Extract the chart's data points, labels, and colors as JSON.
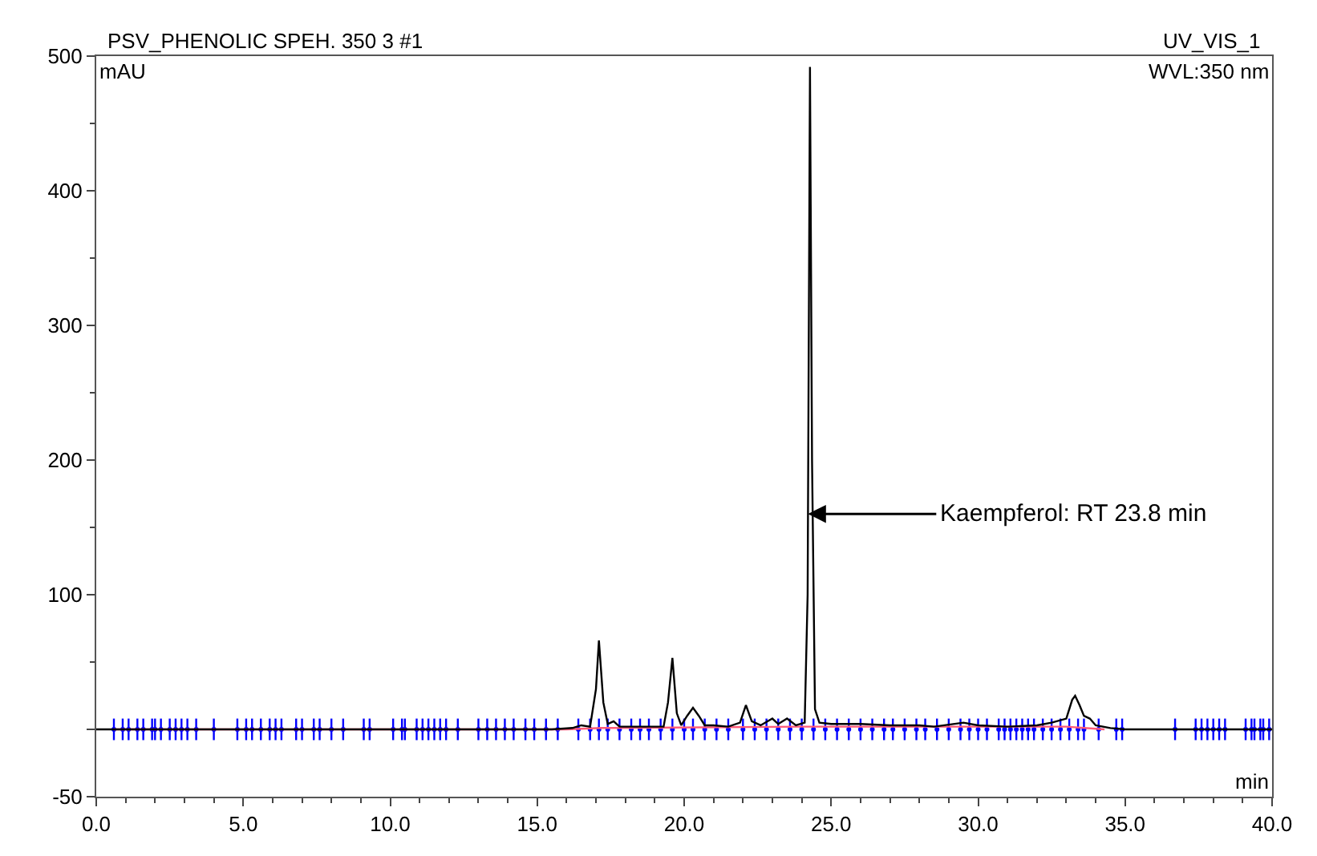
{
  "chart_data": {
    "type": "line",
    "title": "PSV_PHENOLIC SPEH. 350 3 #1",
    "subtitle": "UV_VIS_1",
    "xlabel": "min",
    "ylabel": "mAU",
    "annotations": [
      "WVL:350 nm",
      {
        "text": "Kaempferol: RT 23.8 min",
        "x": 24.21,
        "y": 160
      }
    ],
    "xlim": [
      0,
      40
    ],
    "ylim": [
      -50,
      500
    ],
    "xticks": [
      {
        "value": 0,
        "label": "0.0"
      },
      {
        "value": 5,
        "label": "5.0"
      },
      {
        "value": 10,
        "label": "10.0"
      },
      {
        "value": 15,
        "label": "15.0"
      },
      {
        "value": 20,
        "label": "20.0"
      },
      {
        "value": 25,
        "label": "25.0"
      },
      {
        "value": 30,
        "label": "30.0"
      },
      {
        "value": 35,
        "label": "35.0"
      },
      {
        "value": 40,
        "label": "40.0"
      }
    ],
    "yticks": [
      -50,
      {
        "value": 0,
        "label": null
      },
      100,
      200,
      300,
      400,
      500
    ],
    "series": [
      {
        "type": "scatter",
        "color": "#0000ff",
        "marker": "circle",
        "errors": [
          8,
          8,
          8,
          8,
          8,
          8,
          8,
          8,
          8,
          8,
          8,
          8,
          8,
          8,
          8,
          8,
          8,
          8,
          8,
          8,
          8,
          8,
          8,
          8,
          8,
          8,
          8,
          8,
          8,
          8,
          8,
          8,
          8,
          8,
          8,
          8,
          8,
          8,
          8,
          8,
          8,
          8,
          8,
          8,
          8,
          8,
          8,
          8,
          8,
          8,
          8,
          8,
          8,
          8,
          8,
          8,
          8,
          8,
          8,
          8,
          8,
          8,
          8,
          8,
          8,
          8,
          8,
          8,
          8,
          8,
          8,
          8,
          8,
          8,
          8,
          8,
          8,
          8,
          8,
          8,
          8,
          8,
          8,
          8,
          8,
          8,
          8,
          8,
          8,
          8,
          8,
          8,
          8,
          8,
          8,
          8,
          8,
          8,
          8,
          8,
          8,
          8,
          8,
          8,
          8,
          8,
          8,
          8,
          8,
          8,
          8,
          8,
          8,
          8,
          8
        ],
        "x": [
          0.6,
          0.9,
          1.1,
          1.4,
          1.6,
          1.9,
          2.0,
          2.2,
          2.5,
          2.7,
          2.9,
          3.1,
          3.4,
          4.0,
          4.8,
          5.1,
          5.3,
          5.6,
          5.9,
          6.1,
          6.3,
          6.8,
          7.0,
          7.4,
          7.6,
          8.0,
          8.4,
          9.1,
          9.3,
          10.1,
          10.4,
          10.5,
          10.9,
          11.1,
          11.3,
          11.5,
          11.7,
          11.9,
          12.3,
          13.0,
          13.3,
          13.6,
          13.9,
          14.2,
          14.6,
          14.9,
          15.3,
          15.7,
          16.4,
          16.8,
          17.1,
          17.4,
          17.8,
          18.2,
          18.5,
          18.8,
          19.2,
          19.6,
          20.0,
          20.3,
          20.7,
          21.1,
          21.5,
          22.0,
          22.4,
          22.8,
          23.2,
          23.6,
          24.0,
          24.4,
          24.8,
          25.2,
          25.6,
          26.0,
          26.4,
          26.8,
          27.1,
          27.5,
          27.9,
          28.2,
          28.6,
          29.0,
          29.4,
          29.7,
          30.0,
          30.3,
          30.7,
          30.9,
          31.1,
          31.3,
          31.5,
          31.7,
          31.9,
          32.2,
          32.5,
          32.8,
          33.1,
          33.4,
          33.6,
          34.1,
          34.7,
          34.9,
          36.7,
          37.4,
          37.6,
          37.8,
          38.0,
          38.2,
          38.4,
          39.1,
          39.3,
          39.4,
          39.6,
          39.7,
          39.9
        ],
        "values": [
          0,
          0,
          0,
          0,
          0,
          0,
          0,
          0,
          0,
          0,
          0,
          0,
          0,
          0,
          0,
          0,
          0,
          0,
          0,
          0,
          0,
          0,
          0,
          0,
          0,
          0,
          0,
          0,
          0,
          0,
          0,
          0,
          0,
          0,
          0,
          0,
          0,
          0,
          0,
          0,
          0,
          0,
          0,
          0,
          0,
          0,
          0,
          0,
          0,
          0,
          0,
          0,
          0,
          0,
          0,
          0,
          0,
          0,
          0,
          0,
          0,
          0,
          0,
          0,
          0,
          0,
          0,
          0,
          0,
          0,
          0,
          0,
          0,
          0,
          0,
          0,
          0,
          0,
          0,
          0,
          0,
          0,
          0,
          0,
          0,
          0,
          0,
          0,
          0,
          0,
          0,
          0,
          0,
          0,
          0,
          0,
          0,
          0,
          0,
          0,
          0,
          0,
          0,
          0,
          0,
          0,
          0,
          0,
          0,
          0,
          0,
          0,
          0,
          0,
          0
        ]
      },
      {
        "color": "#ff5a78",
        "x": [
          0.6,
          16.0,
          17.2,
          24.0,
          33.0,
          34.3
        ],
        "values": [
          0,
          0,
          1,
          2,
          2,
          0
        ]
      },
      {
        "color": "#000000",
        "x": [
          0,
          15.5,
          16.2,
          16.5,
          16.8,
          17.0,
          17.1,
          17.25,
          17.4,
          17.6,
          17.8,
          18.5,
          19.3,
          19.45,
          19.6,
          19.75,
          19.9,
          20.1,
          20.3,
          20.5,
          20.7,
          21.0,
          21.5,
          21.9,
          22.1,
          22.3,
          22.6,
          23.0,
          23.2,
          23.5,
          23.8,
          24.1,
          24.2,
          24.28,
          24.35,
          24.45,
          24.6,
          25.0,
          26.0,
          27.0,
          28.0,
          28.5,
          29.5,
          30.0,
          31.0,
          32.0,
          32.5,
          33.0,
          33.2,
          33.3,
          33.45,
          33.6,
          33.8,
          34.0,
          34.5,
          35.0,
          40.0
        ],
        "values": [
          0,
          0,
          1,
          3,
          2,
          30,
          66,
          20,
          4,
          6,
          2,
          2,
          2,
          20,
          53,
          12,
          3,
          10,
          16,
          10,
          3,
          3,
          2,
          5,
          18,
          6,
          3,
          8,
          4,
          8,
          3,
          5,
          100,
          492,
          200,
          15,
          5,
          4,
          4,
          3,
          3,
          2,
          5,
          3,
          2,
          3,
          5,
          8,
          22,
          25,
          18,
          10,
          8,
          3,
          1,
          0,
          0
        ]
      }
    ]
  }
}
